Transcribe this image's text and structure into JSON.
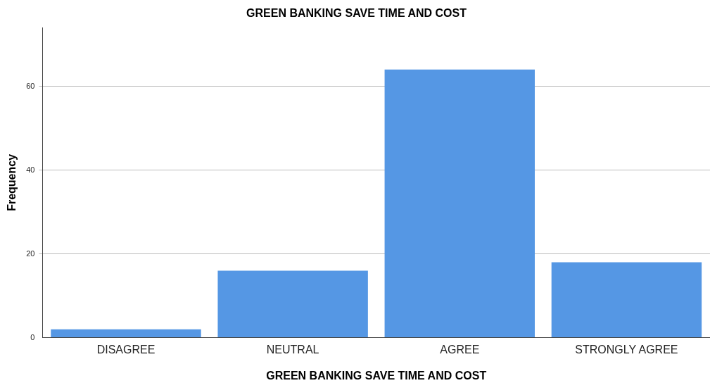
{
  "chart_data": {
    "type": "bar",
    "title": "GREEN BANKING SAVE TIME AND COST",
    "xlabel": "GREEN BANKING SAVE TIME AND COST",
    "ylabel": "Frequency",
    "categories": [
      "DISAGREE",
      "NEUTRAL",
      "AGREE",
      "STRONGLY AGREE"
    ],
    "values": [
      2,
      16,
      64,
      18
    ],
    "color": "#5597e4",
    "ylim": [
      0,
      74
    ],
    "yticks": [
      0,
      20,
      40,
      60
    ],
    "grid": "y",
    "legend": false
  }
}
